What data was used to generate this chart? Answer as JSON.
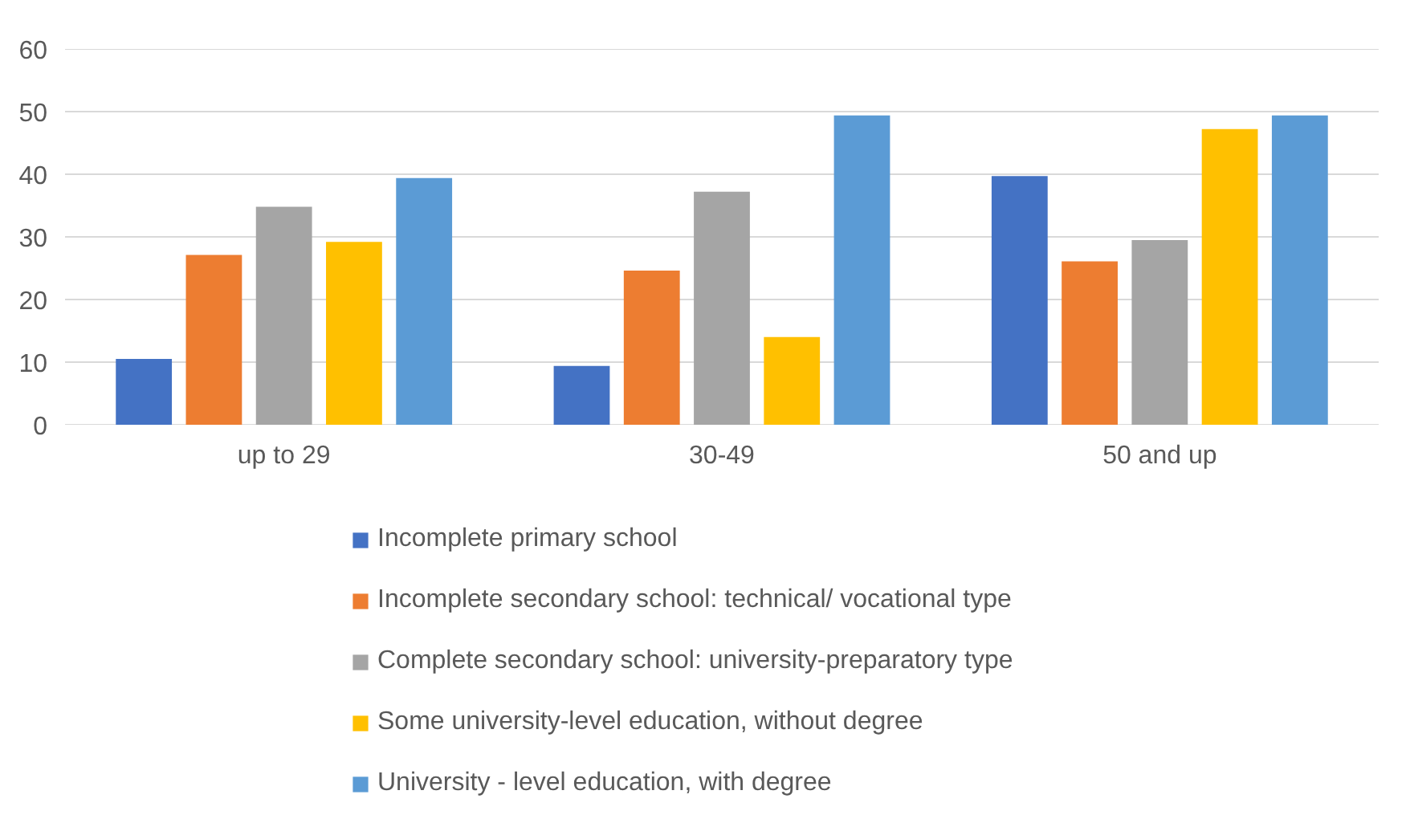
{
  "chart_data": {
    "type": "bar",
    "categories": [
      "up to 29",
      "30-49",
      "50 and up"
    ],
    "series": [
      {
        "name": "Incomplete primary school",
        "color": "#4472c4",
        "values": [
          10.5,
          9.4,
          39.7
        ]
      },
      {
        "name": "Incomplete secondary school: technical/ vocational type",
        "color": "#ed7d31",
        "values": [
          27.1,
          24.6,
          26.1
        ]
      },
      {
        "name": "Complete secondary school: university-preparatory type",
        "color": "#a5a5a5",
        "values": [
          34.8,
          37.2,
          29.5
        ]
      },
      {
        "name": "Some university-level education, without degree",
        "color": "#ffc000",
        "values": [
          29.2,
          14.0,
          47.2
        ]
      },
      {
        "name": "University - level education, with degree",
        "color": "#5b9bd5",
        "values": [
          39.4,
          49.4,
          49.4
        ]
      }
    ],
    "ylim": [
      0,
      60
    ],
    "yticks": [
      0,
      10,
      20,
      30,
      40,
      50,
      60
    ],
    "grid": "y",
    "legend": "bottom"
  }
}
